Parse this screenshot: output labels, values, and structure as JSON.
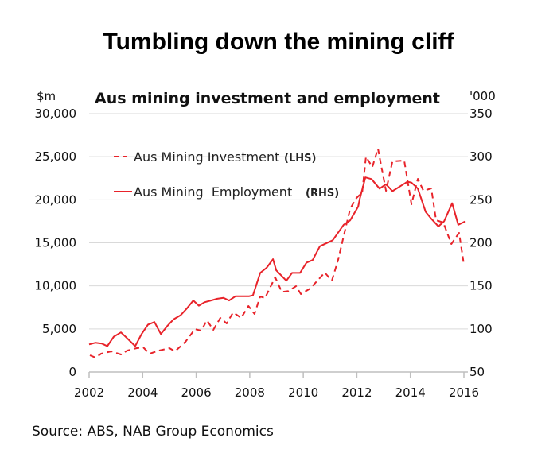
{
  "header": {
    "title": "Tumbling down the mining cliff"
  },
  "footer": {
    "source": "Source: ABS, NAB Group Economics"
  },
  "chart_data": {
    "type": "line",
    "title": "Aus mining investment and employment",
    "ylabel_left": "$m",
    "ylabel_right": "'000",
    "xlim": [
      2002,
      2016
    ],
    "x_ticks": [
      "2002",
      "2004",
      "2006",
      "2008",
      "2010",
      "2012",
      "2014",
      "2016"
    ],
    "ylim_left": [
      0,
      30000
    ],
    "y_ticks_left": [
      "0",
      "5,000",
      "10,000",
      "15,000",
      "20,000",
      "25,000",
      "30,000"
    ],
    "ylim_right": [
      50,
      350
    ],
    "y_ticks_right": [
      "50",
      "100",
      "150",
      "200",
      "250",
      "300",
      "350"
    ],
    "grid": true,
    "legend": {
      "placement": "top-left",
      "entries": [
        {
          "label": "Aus Mining Investment",
          "tag": "(LHS)"
        },
        {
          "label": "Aus Mining  Employment",
          "tag": "(RHS)"
        }
      ]
    },
    "colors": {
      "series": "#e8232a",
      "grid": "#d9d9d9",
      "axis": "#bfbfbf"
    },
    "series": [
      {
        "name": "Aus Mining Investment",
        "axis": "left",
        "style": "dashed",
        "points": [
          [
            2002.03,
            1940
          ],
          [
            2002.24,
            1660
          ],
          [
            2002.45,
            2120
          ],
          [
            2002.83,
            2400
          ],
          [
            2003.19,
            2030
          ],
          [
            2003.43,
            2490
          ],
          [
            2003.78,
            2770
          ],
          [
            2004.02,
            2860
          ],
          [
            2004.26,
            2120
          ],
          [
            2004.62,
            2490
          ],
          [
            2005.0,
            2770
          ],
          [
            2005.21,
            2400
          ],
          [
            2005.6,
            3510
          ],
          [
            2005.95,
            4980
          ],
          [
            2006.19,
            4800
          ],
          [
            2006.4,
            6000
          ],
          [
            2006.64,
            4890
          ],
          [
            2006.9,
            6280
          ],
          [
            2007.14,
            5630
          ],
          [
            2007.38,
            6920
          ],
          [
            2007.68,
            6280
          ],
          [
            2007.95,
            7660
          ],
          [
            2008.18,
            6740
          ],
          [
            2008.39,
            8770
          ],
          [
            2008.57,
            8580
          ],
          [
            2008.95,
            11000
          ],
          [
            2009.2,
            9300
          ],
          [
            2009.45,
            9400
          ],
          [
            2009.73,
            9970
          ],
          [
            2009.91,
            9050
          ],
          [
            2010.26,
            9690
          ],
          [
            2010.8,
            11540
          ],
          [
            2011.07,
            10610
          ],
          [
            2011.3,
            13010
          ],
          [
            2011.51,
            15780
          ],
          [
            2011.75,
            18920
          ],
          [
            2011.96,
            20120
          ],
          [
            2012.2,
            20860
          ],
          [
            2012.34,
            25010
          ],
          [
            2012.58,
            23810
          ],
          [
            2012.79,
            25940
          ],
          [
            2013.09,
            21040
          ],
          [
            2013.33,
            24460
          ],
          [
            2013.77,
            24550
          ],
          [
            2014.04,
            19480
          ],
          [
            2014.28,
            22430
          ],
          [
            2014.49,
            21040
          ],
          [
            2014.78,
            21320
          ],
          [
            2014.96,
            17630
          ],
          [
            2015.23,
            17350
          ],
          [
            2015.53,
            14860
          ],
          [
            2015.82,
            16150
          ],
          [
            2016.0,
            12460
          ]
        ]
      },
      {
        "name": "Aus Mining  Employment",
        "axis": "right",
        "style": "solid",
        "points": [
          [
            2002.0,
            82
          ],
          [
            2002.24,
            84
          ],
          [
            2002.48,
            83
          ],
          [
            2002.68,
            80
          ],
          [
            2002.92,
            91
          ],
          [
            2003.19,
            96
          ],
          [
            2003.43,
            89
          ],
          [
            2003.72,
            80
          ],
          [
            2003.96,
            94
          ],
          [
            2004.2,
            105
          ],
          [
            2004.44,
            108
          ],
          [
            2004.68,
            94
          ],
          [
            2004.91,
            103
          ],
          [
            2005.15,
            111
          ],
          [
            2005.42,
            116
          ],
          [
            2005.66,
            124
          ],
          [
            2005.89,
            133
          ],
          [
            2006.1,
            127
          ],
          [
            2006.31,
            131
          ],
          [
            2006.55,
            133
          ],
          [
            2006.79,
            135
          ],
          [
            2007.02,
            136
          ],
          [
            2007.23,
            133
          ],
          [
            2007.47,
            138
          ],
          [
            2007.74,
            138
          ],
          [
            2007.98,
            138
          ],
          [
            2008.12,
            139
          ],
          [
            2008.39,
            165
          ],
          [
            2008.63,
            171
          ],
          [
            2008.87,
            181
          ],
          [
            2008.99,
            168
          ],
          [
            2009.37,
            156
          ],
          [
            2009.58,
            165
          ],
          [
            2009.88,
            165
          ],
          [
            2010.12,
            177
          ],
          [
            2010.35,
            180
          ],
          [
            2010.62,
            196
          ],
          [
            2011.1,
            203
          ],
          [
            2011.51,
            221
          ],
          [
            2011.75,
            226
          ],
          [
            2012.05,
            242
          ],
          [
            2012.11,
            251
          ],
          [
            2012.32,
            276
          ],
          [
            2012.55,
            274
          ],
          [
            2012.85,
            263
          ],
          [
            2013.09,
            268
          ],
          [
            2013.33,
            260
          ],
          [
            2013.89,
            271
          ],
          [
            2014.04,
            270
          ],
          [
            2014.28,
            263
          ],
          [
            2014.57,
            236
          ],
          [
            2014.78,
            228
          ],
          [
            2015.05,
            219
          ],
          [
            2015.26,
            225
          ],
          [
            2015.56,
            246
          ],
          [
            2015.79,
            221
          ],
          [
            2016.06,
            225
          ]
        ]
      }
    ]
  }
}
